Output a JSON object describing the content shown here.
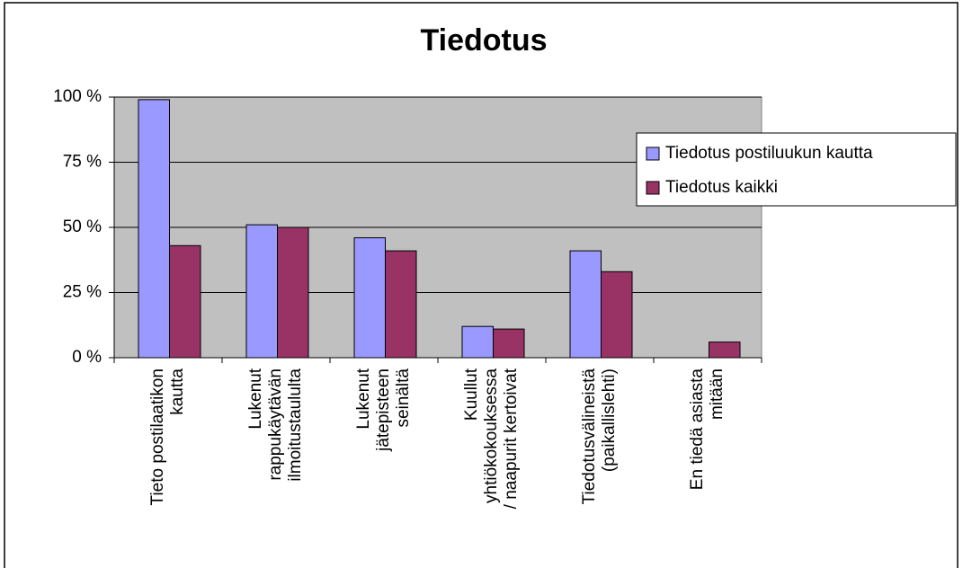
{
  "chart_data": {
    "type": "bar",
    "title": "Tiedotus",
    "categories": [
      [
        "Tieto postilaatikon",
        "kautta"
      ],
      [
        "Lukenut",
        "rappukäytävän",
        "ilmoitustaululta"
      ],
      [
        "Lukenut",
        "jätepisteen",
        "seinältä"
      ],
      [
        "Kuullut",
        "yhtiökokouksessa",
        "/ naapurit kertoivat"
      ],
      [
        "Tiedotusvälineistä",
        "(paikallislehti)"
      ],
      [
        "En tiedä asiasta",
        "mitään"
      ]
    ],
    "series": [
      {
        "name": "Tiedotus postiluukun kautta",
        "color": "#9999ff",
        "values": [
          99,
          51,
          46,
          12,
          41,
          0
        ]
      },
      {
        "name": "Tiedotus kaikki",
        "color": "#993366",
        "values": [
          43,
          50,
          41,
          11,
          33,
          6
        ]
      }
    ],
    "ylim": [
      0,
      100
    ],
    "yticks": [
      {
        "value": 0,
        "label": "0 %"
      },
      {
        "value": 25,
        "label": "25 %"
      },
      {
        "value": 50,
        "label": "50 %"
      },
      {
        "value": 75,
        "label": "75 %"
      },
      {
        "value": 100,
        "label": "100 %"
      }
    ],
    "grid": true,
    "legend": "right"
  }
}
